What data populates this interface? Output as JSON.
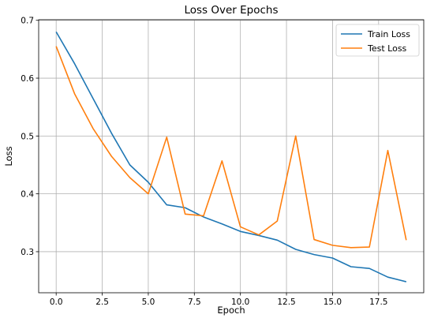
{
  "chart_data": {
    "type": "line",
    "title": "Loss Over Epochs",
    "xlabel": "Epoch",
    "ylabel": "Loss",
    "xlim": [
      -0.95,
      19.95
    ],
    "ylim": [
      0.229,
      0.701
    ],
    "xticks": [
      0.0,
      2.5,
      5.0,
      7.5,
      10.0,
      12.5,
      15.0,
      17.5
    ],
    "xtick_labels": [
      "0.0",
      "2.5",
      "5.0",
      "7.5",
      "10.0",
      "12.5",
      "15.0",
      "17.5"
    ],
    "yticks": [
      0.3,
      0.4,
      0.5,
      0.6,
      0.7
    ],
    "ytick_labels": [
      "0.3",
      "0.4",
      "0.5",
      "0.6",
      "0.7"
    ],
    "grid": true,
    "legend_position": "top-right",
    "x": [
      0,
      1,
      2,
      3,
      4,
      5,
      6,
      7,
      8,
      9,
      10,
      11,
      12,
      13,
      14,
      15,
      16,
      17,
      18,
      19
    ],
    "series": [
      {
        "name": "Train Loss",
        "color": "#1f77b4",
        "values": [
          0.68,
          0.625,
          0.565,
          0.505,
          0.45,
          0.42,
          0.381,
          0.376,
          0.36,
          0.348,
          0.335,
          0.328,
          0.32,
          0.304,
          0.295,
          0.289,
          0.274,
          0.271,
          0.256,
          0.248
        ]
      },
      {
        "name": "Test Loss",
        "color": "#ff7f0e",
        "values": [
          0.655,
          0.573,
          0.513,
          0.465,
          0.428,
          0.4,
          0.498,
          0.365,
          0.362,
          0.457,
          0.343,
          0.329,
          0.353,
          0.5,
          0.321,
          0.311,
          0.307,
          0.308,
          0.475,
          0.32
        ]
      }
    ]
  }
}
